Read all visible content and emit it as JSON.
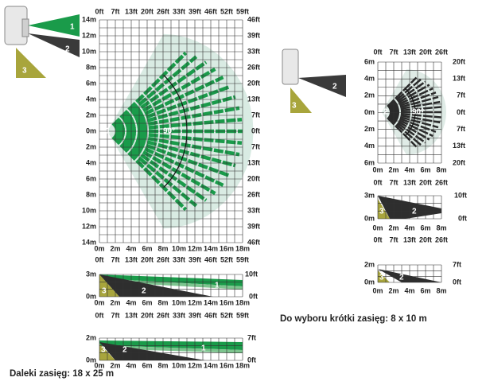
{
  "long_range": {
    "caption": "Daleki zasięg: 18 x 25 m",
    "sensor_zones": [
      "1",
      "2",
      "3"
    ],
    "top_view": {
      "ft_labels": [
        "0ft",
        "7ft",
        "13ft",
        "20ft",
        "26ft",
        "33ft",
        "39ft",
        "46ft",
        "52ft",
        "59ft"
      ],
      "m_labels": [
        "0m",
        "2m",
        "4m",
        "6m",
        "8m",
        "10m",
        "12m",
        "14m",
        "16m",
        "18m"
      ],
      "left_labels": [
        "14m",
        "12m",
        "10m",
        "8m",
        "6m",
        "4m",
        "2m",
        "0m",
        "2m",
        "4m",
        "6m",
        "8m",
        "10m",
        "12m",
        "14m"
      ],
      "right_labels": [
        "46ft",
        "39ft",
        "33ft",
        "26ft",
        "20ft",
        "13ft",
        "7ft",
        "0ft",
        "7ft",
        "13ft",
        "20ft",
        "26ft",
        "33ft",
        "39ft",
        "46ft"
      ],
      "zone_label": "1",
      "angle_label": "90°"
    },
    "side_view_1": {
      "ft_labels": [
        "0ft",
        "7ft",
        "13ft",
        "20ft",
        "26ft",
        "33ft",
        "39ft",
        "46ft",
        "52ft",
        "59ft"
      ],
      "m_labels": [
        "0m",
        "2m",
        "4m",
        "6m",
        "8m",
        "10m",
        "12m",
        "14m",
        "16m",
        "18m"
      ],
      "left_labels": [
        "3m",
        "0m"
      ],
      "right_labels": [
        "10ft",
        "0ft"
      ],
      "zone_labels": [
        "1",
        "2",
        "3"
      ]
    },
    "side_view_2": {
      "ft_labels": [
        "0ft",
        "7ft",
        "13ft",
        "20ft",
        "26ft",
        "33ft",
        "39ft",
        "46ft",
        "52ft",
        "59ft"
      ],
      "m_labels": [
        "0m",
        "2m",
        "4m",
        "6m",
        "8m",
        "10m",
        "12m",
        "14m",
        "16m",
        "18m"
      ],
      "left_labels": [
        "2m",
        "0m"
      ],
      "right_labels": [
        "7ft",
        "0ft"
      ],
      "zone_labels": [
        "1",
        "2",
        "3"
      ]
    }
  },
  "short_range": {
    "caption": "Do wyboru krótki zasięg: 8 x 10 m",
    "sensor_zones": [
      "2",
      "3"
    ],
    "top_view": {
      "ft_labels": [
        "0ft",
        "7ft",
        "13ft",
        "20ft",
        "26ft"
      ],
      "m_labels": [
        "0m",
        "2m",
        "4m",
        "6m",
        "8m"
      ],
      "left_labels": [
        "6m",
        "4m",
        "2m",
        "0m",
        "2m",
        "4m",
        "6m"
      ],
      "right_labels": [
        "20ft",
        "13ft",
        "7ft",
        "0ft",
        "7ft",
        "13ft",
        "20ft"
      ],
      "zone_label": "2",
      "angle_label": "90°"
    },
    "side_view_1": {
      "ft_labels": [
        "0ft",
        "7ft",
        "13ft",
        "20ft",
        "26ft"
      ],
      "m_labels": [
        "0m",
        "2m",
        "4m",
        "6m",
        "8m"
      ],
      "left_labels": [
        "3m",
        "0m"
      ],
      "right_labels": [
        "10ft",
        "0ft"
      ],
      "zone_labels": [
        "2",
        "3"
      ]
    },
    "side_view_2": {
      "ft_labels": [
        "0ft",
        "7ft",
        "13ft",
        "20ft",
        "26ft"
      ],
      "m_labels": [
        "0m",
        "2m",
        "4m",
        "6m",
        "8m"
      ],
      "left_labels": [
        "2m",
        "0m"
      ],
      "right_labels": [
        "7ft",
        "0ft"
      ],
      "zone_labels": [
        "2",
        "3"
      ]
    }
  }
}
